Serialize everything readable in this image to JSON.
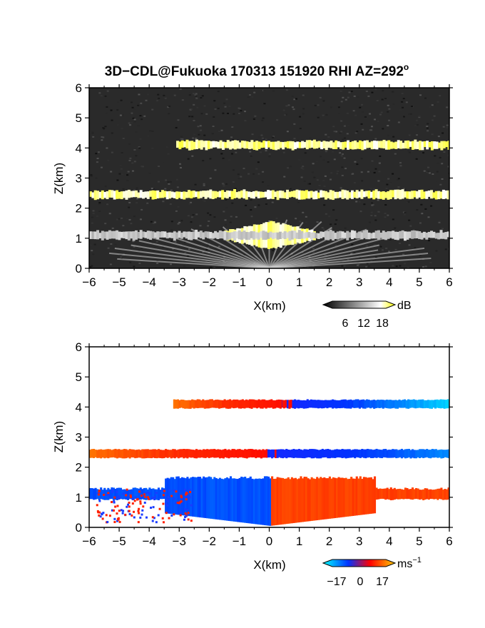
{
  "title": {
    "main": "3D−CDL@Fukuoka 170313 151920 RHI AZ=292",
    "superscript": "o"
  },
  "chart_data": [
    {
      "type": "heatmap",
      "quantity": "backscatter",
      "xlabel": "X(km)",
      "ylabel": "Z(km)",
      "xlim": [
        -6,
        6
      ],
      "ylim": [
        0,
        6
      ],
      "xticks": [
        "−6",
        "−5",
        "−4",
        "−3",
        "−2",
        "−1",
        "0",
        "1",
        "2",
        "3",
        "4",
        "5",
        "6"
      ],
      "yticks": [
        "0",
        "1",
        "2",
        "3",
        "4",
        "5",
        "6"
      ],
      "colorbar": {
        "unit": "dB",
        "ticks": [
          "6",
          "12",
          "18"
        ],
        "range": [
          0,
          20
        ],
        "colors": [
          "#000000",
          "#ffffff",
          "#ffff00"
        ]
      },
      "layers": [
        {
          "z": 4.1,
          "x_from": -3.1,
          "x_to": 6.0,
          "value_db": 19
        },
        {
          "z": 2.45,
          "x_from": -6.0,
          "x_to": 6.0,
          "value_db": 19
        },
        {
          "z": 1.1,
          "x_from": -1.5,
          "x_to": 1.5,
          "value_db": 19
        },
        {
          "z": 1.1,
          "x_from": -6.0,
          "x_to": 6.0,
          "value_db": 14
        }
      ]
    },
    {
      "type": "heatmap",
      "quantity": "doppler_velocity",
      "xlabel": "X(km)",
      "ylabel": "Z(km)",
      "xlim": [
        -6,
        6
      ],
      "ylim": [
        0,
        6
      ],
      "xticks": [
        "−6",
        "−5",
        "−4",
        "−3",
        "−2",
        "−1",
        "0",
        "1",
        "2",
        "3",
        "4",
        "5",
        "6"
      ],
      "yticks": [
        "0",
        "1",
        "2",
        "3",
        "4",
        "5",
        "6"
      ],
      "colorbar": {
        "unit": "ms",
        "unit_superscript": "−1",
        "ticks": [
          "−17",
          "0",
          "17"
        ],
        "range": [
          -20,
          20
        ],
        "colors": [
          "#00ffff",
          "#0033ff",
          "#ff0000",
          "#ffcc00"
        ]
      },
      "layers": [
        {
          "z": 4.1,
          "x_from": -3.2,
          "x_to": 6.0,
          "v_left": 12,
          "v_right": -17
        },
        {
          "z": 2.45,
          "x_from": -6.0,
          "x_to": 6.0,
          "v_left": 12,
          "v_right": -12
        },
        {
          "z": 1.1,
          "x_from": -6.0,
          "x_to": 6.0,
          "v_left": -8,
          "v_right": 8
        }
      ]
    }
  ]
}
